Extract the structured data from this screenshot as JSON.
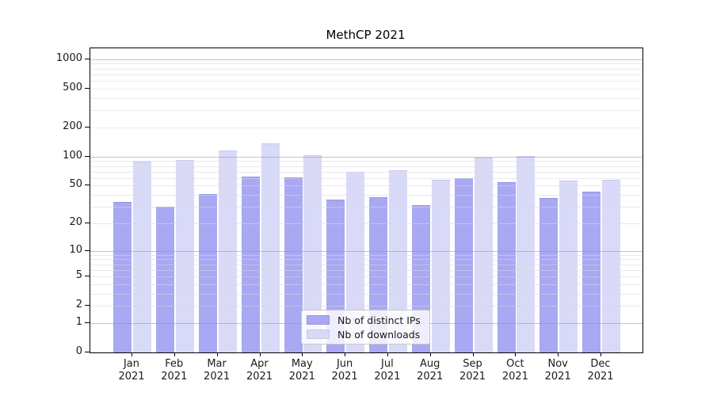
{
  "chart_data": {
    "type": "bar",
    "title": "MethCP 2021",
    "categories": [
      "Jan\n2021",
      "Feb\n2021",
      "Mar\n2021",
      "Apr\n2021",
      "May\n2021",
      "Jun\n2021",
      "Jul\n2021",
      "Aug\n2021",
      "Sep\n2021",
      "Oct\n2021",
      "Nov\n2021",
      "Dec\n2021"
    ],
    "series": [
      {
        "name": "Nb of distinct IPs",
        "color": "#a8a8f3",
        "edge_color": "#9595e8",
        "values": [
          34,
          30,
          41,
          62,
          61,
          36,
          38,
          31,
          60,
          54,
          37,
          43
        ]
      },
      {
        "name": "Nb of downloads",
        "color": "#d9d9f8",
        "edge_color": "#c8c8f0",
        "values": [
          88,
          92,
          116,
          138,
          104,
          69,
          72,
          57,
          97,
          102,
          56,
          58
        ]
      }
    ],
    "xlabel": "",
    "ylabel": "",
    "y_ticks": [
      0,
      1,
      2,
      5,
      10,
      20,
      50,
      100,
      200,
      500,
      1000
    ],
    "y_major_gridlines": [
      1,
      10,
      100,
      1000
    ],
    "scale": "log10(1+x)",
    "ylim": [
      0,
      1280
    ],
    "grid": true,
    "legend_position": "lower center (inside plot)",
    "frame_color": "#000000",
    "background_color": "#ffffff"
  }
}
